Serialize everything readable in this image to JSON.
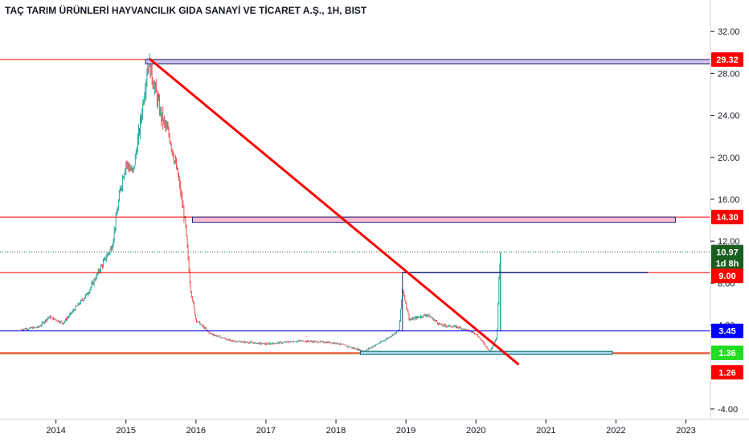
{
  "title": "TAÇ TARIM ÜRÜNLERİ HAYVANCILIK GIDA SANAYİ VE TİCARET A.Ş., 1H, BIST",
  "chart_data": {
    "type": "candlestick",
    "xlim": [
      2013.2,
      2023.35
    ],
    "ylim": [
      -5.0,
      35.0
    ],
    "y_ticks": [
      -4,
      4,
      8,
      12,
      16,
      20,
      24,
      28,
      32
    ],
    "y_tick_labels": [
      "-4.00",
      "4.00",
      "8.00",
      "12.00",
      "16.00",
      "20.00",
      "24.00",
      "28.00",
      "32.00"
    ],
    "x_ticks": [
      2014,
      2015,
      2016,
      2017,
      2018,
      2019,
      2020,
      2021,
      2022,
      2023
    ],
    "x_tick_labels": [
      "2014",
      "2015",
      "2016",
      "2017",
      "2018",
      "2019",
      "2020",
      "2021",
      "2022",
      "2023"
    ],
    "price_path": [
      [
        2013.5,
        3.6
      ],
      [
        2013.75,
        3.8
      ],
      [
        2013.9,
        4.8
      ],
      [
        2014.1,
        4.2
      ],
      [
        2014.25,
        5.4
      ],
      [
        2014.45,
        7.0
      ],
      [
        2014.6,
        9.0
      ],
      [
        2014.8,
        11.5
      ],
      [
        2014.92,
        17.0
      ],
      [
        2015.0,
        19.5
      ],
      [
        2015.1,
        18.5
      ],
      [
        2015.2,
        23.0
      ],
      [
        2015.32,
        29.3
      ],
      [
        2015.5,
        24.0
      ],
      [
        2015.62,
        22.0
      ],
      [
        2015.75,
        18.0
      ],
      [
        2015.85,
        13.5
      ],
      [
        2015.92,
        7.5
      ],
      [
        2016.0,
        4.5
      ],
      [
        2016.2,
        3.2
      ],
      [
        2016.5,
        2.5
      ],
      [
        2017.0,
        2.2
      ],
      [
        2017.5,
        2.5
      ],
      [
        2018.0,
        2.3
      ],
      [
        2018.4,
        1.5
      ],
      [
        2018.7,
        2.6
      ],
      [
        2018.9,
        3.5
      ],
      [
        2018.95,
        7.5
      ],
      [
        2019.05,
        4.5
      ],
      [
        2019.3,
        5.0
      ],
      [
        2019.5,
        4.0
      ],
      [
        2019.75,
        3.8
      ],
      [
        2020.0,
        3.2
      ],
      [
        2020.2,
        1.5
      ],
      [
        2020.3,
        2.8
      ],
      [
        2020.33,
        9.0
      ],
      [
        2020.35,
        10.97
      ]
    ],
    "horizontal_lines": [
      {
        "y": 29.32,
        "color": "#ff0000"
      },
      {
        "y": 14.3,
        "color": "#ff0000"
      },
      {
        "y": 10.97,
        "color": "#1b5e20",
        "style": "dotted"
      },
      {
        "y": 9.0,
        "color": "#ff0000"
      },
      {
        "y": 3.45,
        "color": "#0000ff"
      },
      {
        "y": 1.36,
        "color": "#ff0000"
      },
      {
        "y": 1.26,
        "color": "#b8860b"
      }
    ],
    "rectangles": [
      {
        "x": [
          2015.28,
          2023.35
        ],
        "y": [
          28.9,
          29.32
        ],
        "fill": "#d1c4e9",
        "stroke": "#1a237e"
      },
      {
        "x": [
          2015.95,
          2022.85
        ],
        "y": [
          13.8,
          14.3
        ],
        "fill": "#f8bbd0",
        "stroke": "#1a237e"
      },
      {
        "x": [
          2018.35,
          2021.95
        ],
        "y": [
          1.2,
          1.5
        ],
        "fill": "#a7d8f0",
        "stroke": "#00695c"
      }
    ],
    "segments": [
      {
        "from": [
          2018.95,
          9.0
        ],
        "to": [
          2022.45,
          9.0
        ],
        "color": "#1a237e",
        "width": 1.5
      },
      {
        "from": [
          2018.95,
          9.0
        ],
        "to": [
          2018.95,
          3.45
        ],
        "color": "#1a237e",
        "width": 1
      },
      {
        "from": [
          2015.35,
          29.32
        ],
        "to": [
          2020.6,
          0.3
        ],
        "color": "#ff0000",
        "width": 3
      }
    ],
    "price_tags": [
      {
        "label": "29.32",
        "value": 29.32,
        "color": "#ff0000"
      },
      {
        "label": "14.30",
        "value": 14.3,
        "color": "#ff0000"
      },
      {
        "label": "10.97",
        "value": 10.97,
        "color": "#1b5e20"
      },
      {
        "label": "1d 8h",
        "value": 9.9,
        "color": "#1b5e20"
      },
      {
        "label": "9.00",
        "value": 8.7,
        "color": "#ff0000"
      },
      {
        "label": "3.45",
        "value": 3.45,
        "color": "#0000ff"
      },
      {
        "label": "1.36",
        "value": 1.36,
        "color": "#22dd22"
      },
      {
        "label": "1.26",
        "value": -0.5,
        "color": "#ff0000"
      }
    ],
    "colors": {
      "up": "#26a69a",
      "down": "#ef5350"
    }
  }
}
